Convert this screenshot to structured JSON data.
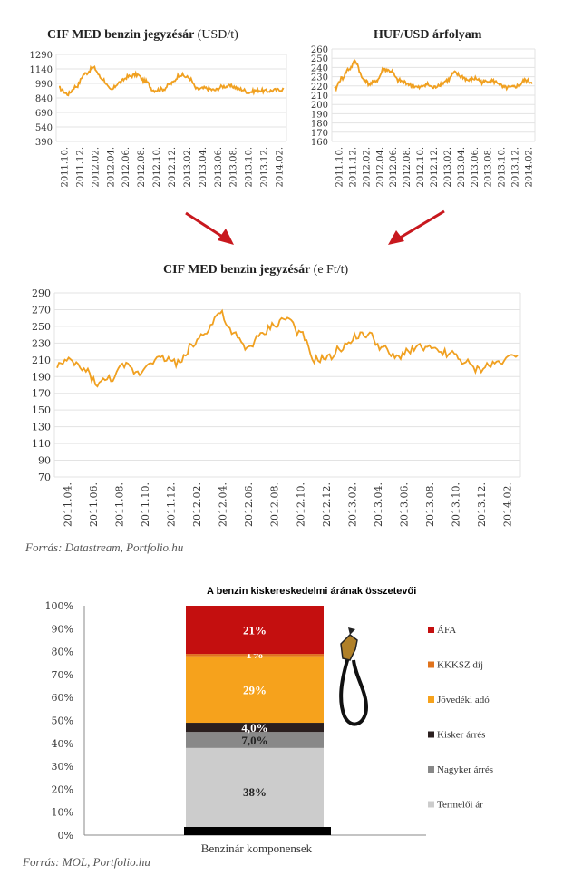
{
  "charts": {
    "usd": {
      "title_bold": "CIF MED benzin jegyzésár",
      "title_unit": "(USD/t)",
      "y_ticks": [
        "1290",
        "1140",
        "990",
        "840",
        "690",
        "540",
        "390"
      ],
      "x_ticks": [
        "2011.10.",
        "2011.12.",
        "2012.02.",
        "2012.04.",
        "2012.06.",
        "2012.08.",
        "2012.10.",
        "2012.12.",
        "2013.02.",
        "2013.04.",
        "2013.06.",
        "2013.08.",
        "2013.10.",
        "2013.12.",
        "2014.02."
      ]
    },
    "huf": {
      "title_bold": "HUF/USD árfolyam",
      "y_ticks": [
        "260",
        "250",
        "240",
        "230",
        "220",
        "210",
        "200",
        "190",
        "180",
        "170",
        "160"
      ],
      "x_ticks": [
        "2011.10.",
        "2011.12.",
        "2012.02.",
        "2012.04.",
        "2012.06.",
        "2012.08.",
        "2012.10.",
        "2012.12.",
        "2013.02.",
        "2013.04.",
        "2013.06.",
        "2013.08.",
        "2013.10.",
        "2013.12.",
        "2014.02."
      ]
    },
    "eft": {
      "title_bold": "CIF MED  benzin jegyzésár",
      "title_unit": "(e Ft/t)",
      "y_ticks": [
        "290",
        "270",
        "250",
        "230",
        "210",
        "190",
        "170",
        "150",
        "130",
        "110",
        "90",
        "70"
      ],
      "x_ticks": [
        "2011.04.",
        "2011.06.",
        "2011.08.",
        "2011.10.",
        "2011.12.",
        "2012.02.",
        "2012.04.",
        "2012.06.",
        "2012.08.",
        "2012.10.",
        "2012.12.",
        "2013.02.",
        "2013.04.",
        "2013.06.",
        "2013.08.",
        "2013.10.",
        "2013.12.",
        "2014.02."
      ],
      "source": "Forrás: Datastream, Portfolio.hu"
    },
    "stack": {
      "title": "A benzin kiskereskedelmi árának összetevői",
      "y_ticks": [
        "100%",
        "90%",
        "80%",
        "70%",
        "60%",
        "50%",
        "40%",
        "30%",
        "20%",
        "10%",
        "0%"
      ],
      "category": "Benzinár komponensek",
      "source": "Forrás: MOL, Portfolio.hu"
    }
  },
  "chart_data": [
    {
      "type": "line",
      "title": "CIF MED benzin jegyzésár (USD/t)",
      "ylim": [
        390,
        1290
      ],
      "color": "#f0a020",
      "x": [
        "2011.10.",
        "2011.12.",
        "2012.02.",
        "2012.03.",
        "2012.04.",
        "2012.05.",
        "2012.06.",
        "2012.07.",
        "2012.08.",
        "2012.09.",
        "2012.10.",
        "2012.11.",
        "2012.12.",
        "2013.01.",
        "2013.02.",
        "2013.03.",
        "2013.04.",
        "2013.05.",
        "2013.06.",
        "2013.07.",
        "2013.08.",
        "2013.09.",
        "2013.10.",
        "2013.11.",
        "2013.12.",
        "2014.01.",
        "2014.02."
      ],
      "values": [
        940,
        880,
        960,
        1090,
        1150,
        1040,
        920,
        1000,
        1060,
        1080,
        1010,
        920,
        930,
        990,
        1080,
        1050,
        930,
        940,
        920,
        960,
        960,
        930,
        900,
        920,
        910,
        920,
        930
      ]
    },
    {
      "type": "line",
      "title": "HUF/USD árfolyam",
      "ylim": [
        160,
        260
      ],
      "color": "#f0a020",
      "x": [
        "2011.10.",
        "2011.11.",
        "2011.12.",
        "2012.01.",
        "2012.02.",
        "2012.03.",
        "2012.04.",
        "2012.05.",
        "2012.06.",
        "2012.07.",
        "2012.08.",
        "2012.09.",
        "2012.10.",
        "2012.11.",
        "2012.12.",
        "2013.01.",
        "2013.02.",
        "2013.03.",
        "2013.04.",
        "2013.05.",
        "2013.06.",
        "2013.07.",
        "2013.08.",
        "2013.09.",
        "2013.10.",
        "2013.11.",
        "2013.12.",
        "2014.01.",
        "2014.02."
      ],
      "values": [
        216,
        228,
        238,
        246,
        228,
        222,
        226,
        238,
        236,
        226,
        224,
        220,
        218,
        222,
        218,
        222,
        226,
        234,
        230,
        226,
        228,
        224,
        226,
        224,
        218,
        218,
        220,
        226,
        224
      ]
    },
    {
      "type": "line",
      "title": "CIF MED  benzin jegyzésár (e Ft/t)",
      "ylim": [
        70,
        290
      ],
      "color": "#f0a020",
      "x": [
        "2011.04.",
        "2011.05.",
        "2011.06.",
        "2011.07.",
        "2011.08.",
        "2011.09.",
        "2011.10.",
        "2011.11.",
        "2011.12.",
        "2012.01.",
        "2012.02.",
        "2012.03.",
        "2012.04.",
        "2012.05.",
        "2012.06.",
        "2012.07.",
        "2012.08.",
        "2012.09.",
        "2012.10.",
        "2012.11.",
        "2012.12.",
        "2013.01.",
        "2013.02.",
        "2013.03.",
        "2013.04.",
        "2013.05.",
        "2013.06.",
        "2013.07.",
        "2013.08.",
        "2013.09.",
        "2013.10.",
        "2013.11.",
        "2013.12.",
        "2014.01.",
        "2014.02."
      ],
      "values": [
        204,
        208,
        198,
        182,
        188,
        203,
        194,
        210,
        212,
        206,
        228,
        245,
        266,
        240,
        224,
        238,
        252,
        260,
        240,
        210,
        212,
        224,
        238,
        240,
        224,
        212,
        222,
        226,
        220,
        218,
        208,
        198,
        204,
        210,
        218
      ]
    },
    {
      "type": "bar",
      "title": "A benzin kiskereskedelmi árának összetevői",
      "categories": [
        "Benzinár komponensek"
      ],
      "ylim": [
        0,
        100
      ],
      "series": [
        {
          "name": "Termelői ár",
          "values": [
            38
          ],
          "label": "38%",
          "color": "#cccccc"
        },
        {
          "name": "Nagyker árrés",
          "values": [
            7
          ],
          "label": "7,0%",
          "color": "#888888"
        },
        {
          "name": "Kisker árrés",
          "values": [
            4
          ],
          "label": "4,0%",
          "color": "#2a1f1f"
        },
        {
          "name": "Jövedéki adó",
          "values": [
            29
          ],
          "label": "29%",
          "color": "#f6a21c"
        },
        {
          "name": "KKKSZ díj",
          "values": [
            1
          ],
          "label": "1%",
          "color": "#e0731c"
        },
        {
          "name": "ÁFA",
          "values": [
            21
          ],
          "label": "21%",
          "color": "#c40f0f"
        }
      ]
    }
  ]
}
